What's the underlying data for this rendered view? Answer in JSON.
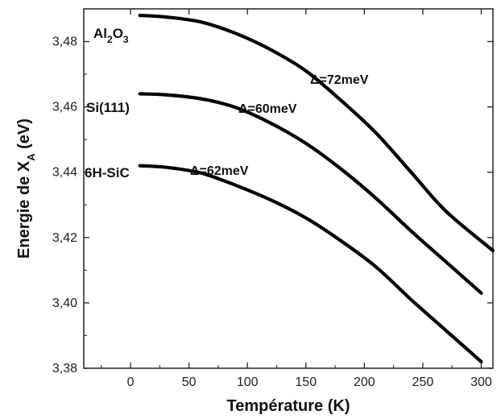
{
  "chart_data": {
    "type": "line",
    "xlabel": "Température (K)",
    "ylabel_main": "Energie de X",
    "ylabel_sub": "A",
    "ylabel_unit": " (eV)",
    "xlim": [
      -40,
      310
    ],
    "ylim": [
      3.38,
      3.49
    ],
    "xticks": [
      0,
      50,
      100,
      150,
      200,
      250,
      300
    ],
    "yticks": [
      3.38,
      3.4,
      3.42,
      3.44,
      3.46,
      3.48
    ],
    "ytick_labels": [
      "3,38",
      "3,40",
      "3,42",
      "3,44",
      "3,46",
      "3,48"
    ],
    "series": [
      {
        "label": "Al₂O₃",
        "label_parts": [
          "Al",
          "2",
          "O",
          "3"
        ],
        "delta": "Δ=72meV",
        "x": [
          8,
          30,
          60,
          90,
          120,
          150,
          180,
          210,
          240,
          270,
          310
        ],
        "y": [
          3.488,
          3.4875,
          3.486,
          3.4825,
          3.4775,
          3.471,
          3.462,
          3.452,
          3.44,
          3.428,
          3.416
        ]
      },
      {
        "label": "Si(111)",
        "delta": "Δ=60meV",
        "x": [
          8,
          30,
          60,
          90,
          120,
          150,
          180,
          210,
          240,
          270,
          300
        ],
        "y": [
          3.464,
          3.4637,
          3.4625,
          3.4598,
          3.455,
          3.4488,
          3.441,
          3.432,
          3.422,
          3.4125,
          3.403
        ]
      },
      {
        "label": "6H-SiC",
        "delta": "Δ=62meV",
        "x": [
          8,
          30,
          60,
          90,
          120,
          150,
          180,
          210,
          240,
          270,
          300
        ],
        "y": [
          3.442,
          3.4415,
          3.4398,
          3.436,
          3.4315,
          3.426,
          3.419,
          3.411,
          3.401,
          3.3915,
          3.382
        ]
      }
    ]
  }
}
